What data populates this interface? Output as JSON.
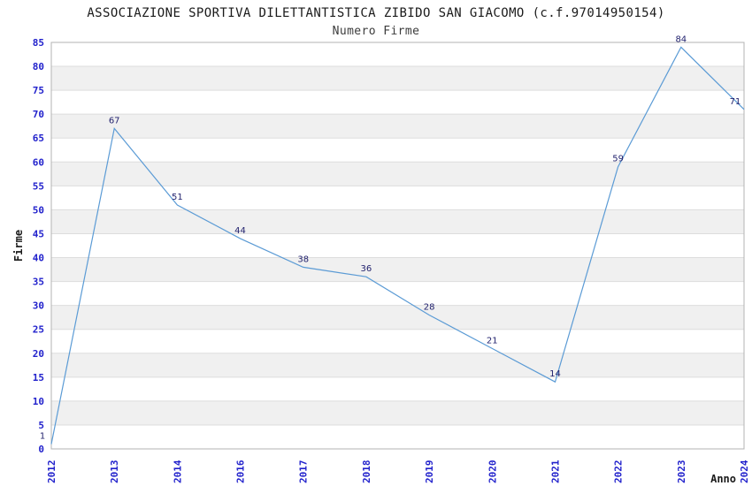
{
  "header": {
    "title": "ASSOCIAZIONE SPORTIVA DILETTANTISTICA ZIBIDO SAN GIACOMO (c.f.97014950154)",
    "subtitle": "Numero Firme"
  },
  "chart_data": {
    "type": "line",
    "title": "ASSOCIAZIONE SPORTIVA DILETTANTISTICA ZIBIDO SAN GIACOMO (c.f.97014950154)",
    "subtitle": "Numero Firme",
    "categories": [
      "2012",
      "2013",
      "2014",
      "2016",
      "2017",
      "2018",
      "2019",
      "2020",
      "2021",
      "2022",
      "2023",
      "2024"
    ],
    "values": [
      1,
      67,
      51,
      44,
      38,
      36,
      28,
      21,
      14,
      59,
      84,
      71
    ],
    "xlabel": "Anno",
    "ylabel": "Firme",
    "ylim": [
      0,
      85
    ],
    "ytick_step": 5,
    "grid": true,
    "legend_position": "none",
    "colors": {
      "line": "#5b9bd5",
      "tick_label": "#2222cc",
      "data_label": "#22226e",
      "band_white": "#ffffff",
      "band_gray": "#f0f0f0",
      "gridline": "#dddddd",
      "plot_border": "#b3b3b3",
      "axis_title": "#1a1a1a"
    }
  }
}
